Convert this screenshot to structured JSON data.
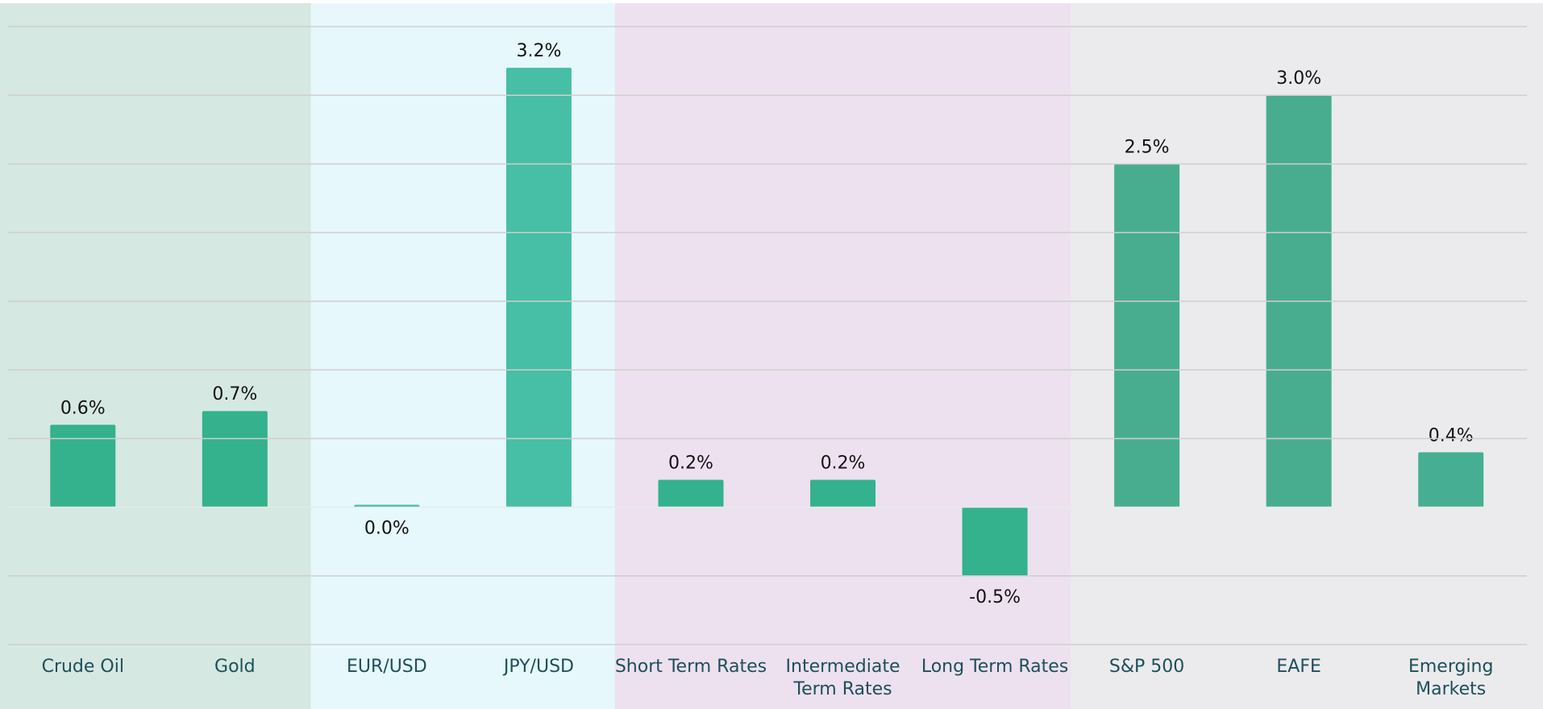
{
  "chart_data": {
    "type": "bar",
    "categories": [
      "Crude Oil",
      "Gold",
      "EUR/USD",
      "JPY/USD",
      "Short Term Rates",
      "Intermediate\nTerm Rates",
      "Long Term Rates",
      "S&P 500",
      "EAFE",
      "Emerging\nMarkets"
    ],
    "values": [
      0.6,
      0.7,
      0.0,
      3.2,
      0.2,
      0.2,
      -0.5,
      2.5,
      3.0,
      0.4
    ],
    "value_labels": [
      "0.6%",
      "0.7%",
      "0.0%",
      "3.2%",
      "0.2%",
      "0.2%",
      "-0.5%",
      "2.5%",
      "3.0%",
      "0.4%"
    ],
    "colors": [
      "#34b18d",
      "#34b18d",
      "#47bea6",
      "#47bea6",
      "#34b18d",
      "#34b18d",
      "#34b18d",
      "#48ad8f",
      "#48ad8f",
      "#46ae93"
    ],
    "band_colors": [
      "#d5e8e1",
      "#d5e8e1",
      "#e6f8fc",
      "#e6f8fc",
      "#ede1ef",
      "#ede1ef",
      "#ede1ef",
      "#ebebed",
      "#ebebed",
      "#ebebed"
    ],
    "ylim": [
      -1,
      3.5
    ],
    "yticks": [
      -1,
      -0.5,
      0,
      0.5,
      1,
      1.5,
      2,
      2.5,
      3,
      3.5
    ],
    "grid": true
  }
}
